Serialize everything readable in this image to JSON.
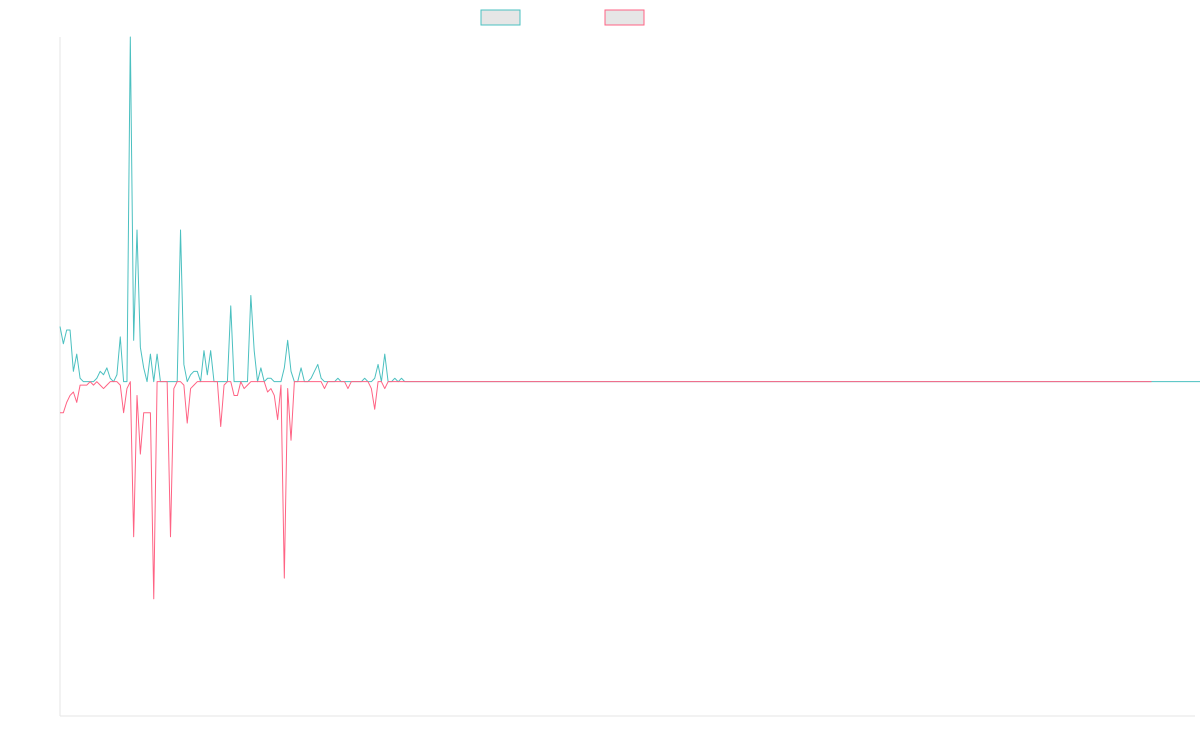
{
  "chart_data": {
    "type": "line",
    "title": "",
    "xlabel": "",
    "ylabel": "",
    "grid": false,
    "legend_position": "top",
    "x_count": 340,
    "ylim": [
      -0.97,
      1.0
    ],
    "series": [
      {
        "key": "positive",
        "color": "#4bc0c0",
        "fill": "#e6e6e6",
        "values": [
          0.16,
          0.11,
          0.15,
          0.15,
          0.03,
          0.08,
          0.01,
          0.0,
          0.0,
          0.0,
          0.0,
          0.01,
          0.03,
          0.02,
          0.04,
          0.01,
          0.0,
          0.02,
          0.13,
          0.0,
          0.0,
          1.0,
          0.12,
          0.44,
          0.1,
          0.04,
          0.0,
          0.08,
          0.0,
          0.08,
          0.0,
          0.0,
          0.0,
          0.0,
          0.0,
          0.0,
          0.44,
          0.05,
          0.0,
          0.02,
          0.03,
          0.03,
          0.0,
          0.09,
          0.02,
          0.09,
          0.0,
          0.0,
          0.0,
          0.0,
          0.0,
          0.22,
          0.0,
          0.0,
          0.0,
          0.0,
          0.0,
          0.25,
          0.09,
          0.0,
          0.04,
          0.0,
          0.01,
          0.01,
          0.0,
          0.0,
          0.0,
          0.04,
          0.12,
          0.03,
          0.0,
          0.0,
          0.04,
          0.0,
          0.0,
          0.01,
          0.03,
          0.05,
          0.01,
          0.0,
          0.0,
          0.0,
          0.0,
          0.01,
          0.0,
          0.0,
          0.0,
          0.0,
          0.0,
          0.0,
          0.0,
          0.01,
          0.0,
          0.0,
          0.01,
          0.05,
          0.0,
          0.08,
          0.0,
          0.0,
          0.01,
          0.0,
          0.01,
          0.0,
          0.0,
          0.0,
          0.0,
          0.0,
          0.0,
          0.0,
          0.0,
          0.0,
          0.0,
          0.0,
          0.0,
          0.0,
          0.0,
          0.0,
          0.0,
          0.0,
          0.0,
          0.0,
          0.0,
          0.0,
          0.0,
          0.0,
          0.0,
          0.0,
          0.0,
          0.0,
          0.0,
          0.0,
          0.0,
          0.0,
          0.0,
          0.0,
          0.0,
          0.0,
          0.0,
          0.0,
          0.0,
          0.0,
          0.0,
          0.0,
          0.0,
          0.0,
          0.0,
          0.0,
          0.0,
          0.0,
          0.0,
          0.0,
          0.0,
          0.0,
          0.0,
          0.0,
          0.0,
          0.0,
          0.0,
          0.0,
          0.0,
          0.0,
          0.0,
          0.0,
          0.0,
          0.0,
          0.0,
          0.0,
          0.0,
          0.0,
          0.0,
          0.0,
          0.0,
          0.0,
          0.0,
          0.0,
          0.0,
          0.0,
          0.0,
          0.0,
          0.0,
          0.0,
          0.0,
          0.0,
          0.0,
          0.0,
          0.0,
          0.0,
          0.0,
          0.0,
          0.0,
          0.0,
          0.0,
          0.0,
          0.0,
          0.0,
          0.0,
          0.0,
          0.0,
          0.0,
          0.0,
          0.0,
          0.0,
          0.0,
          0.0,
          0.0,
          0.0,
          0.0,
          0.0,
          0.0,
          0.0,
          0.0,
          0.0,
          0.0,
          0.0,
          0.0,
          0.0,
          0.0,
          0.0,
          0.0,
          0.0,
          0.0,
          0.0,
          0.0,
          0.0,
          0.0,
          0.0,
          0.0,
          0.0,
          0.0,
          0.0,
          0.0,
          0.0,
          0.0,
          0.0,
          0.0,
          0.0,
          0.0,
          0.0,
          0.0,
          0.0,
          0.0,
          0.0,
          0.0,
          0.0,
          0.0,
          0.0,
          0.0,
          0.0,
          0.0,
          0.0,
          0.0,
          0.0,
          0.0,
          0.0,
          0.0,
          0.0,
          0.0,
          0.0,
          0.0,
          0.0,
          0.0,
          0.0,
          0.0,
          0.0,
          0.0,
          0.0,
          0.0,
          0.0,
          0.0,
          0.0,
          0.0,
          0.0,
          0.0,
          0.0,
          0.0,
          0.0,
          0.0,
          0.0,
          0.0,
          0.0,
          0.0,
          0.0,
          0.0,
          0.0,
          0.0,
          0.0,
          0.0,
          0.0,
          0.0,
          0.0,
          0.0,
          0.0,
          0.0,
          0.0,
          0.0,
          0.0,
          0.0,
          0.0,
          0.0,
          0.0,
          0.0,
          0.0,
          0.0,
          0.0,
          0.0,
          0.0,
          0.0,
          0.0,
          0.0,
          0.0,
          0.0,
          0.0,
          0.0,
          0.0,
          0.0,
          0.0,
          0.0,
          0.0,
          0.0,
          0.0,
          0.0,
          0.0,
          0.0,
          0.0,
          0.0,
          0.0,
          0.0,
          0.0,
          0.0,
          0.0,
          0.0,
          0.0,
          0.0,
          0.0,
          0.0,
          0.0,
          0.0,
          0.0,
          0.0,
          0.0,
          0.0,
          0.0,
          0.0,
          0.0,
          0.0,
          0.0,
          0.0,
          0.0,
          0.0,
          0.0,
          0.0
        ]
      },
      {
        "key": "negative",
        "color": "#ff6384",
        "fill": "#e6e6e6",
        "values": [
          -0.09,
          -0.09,
          -0.06,
          -0.04,
          -0.03,
          -0.06,
          -0.01,
          -0.01,
          -0.01,
          -0.0,
          -0.01,
          -0.0,
          -0.01,
          -0.02,
          -0.01,
          -0.0,
          -0.0,
          -0.0,
          -0.01,
          -0.09,
          -0.02,
          -0.0,
          -0.45,
          -0.04,
          -0.21,
          -0.09,
          -0.09,
          -0.09,
          -0.63,
          -0.0,
          -0.0,
          -0.0,
          -0.0,
          -0.45,
          -0.02,
          -0.0,
          -0.0,
          -0.01,
          -0.12,
          -0.02,
          -0.01,
          -0.0,
          -0.0,
          -0.0,
          -0.0,
          -0.0,
          -0.0,
          -0.0,
          -0.13,
          -0.01,
          -0.0,
          -0.0,
          -0.04,
          -0.04,
          -0.0,
          -0.02,
          -0.01,
          -0.0,
          -0.0,
          -0.0,
          -0.0,
          -0.0,
          -0.03,
          -0.02,
          -0.04,
          -0.11,
          -0.01,
          -0.57,
          -0.02,
          -0.17,
          -0.0,
          -0.0,
          -0.0,
          -0.0,
          -0.0,
          -0.0,
          -0.0,
          -0.0,
          -0.0,
          -0.02,
          -0.0,
          -0.0,
          -0.0,
          -0.0,
          -0.0,
          -0.0,
          -0.02,
          -0.0,
          -0.0,
          -0.0,
          -0.0,
          -0.0,
          -0.0,
          -0.02,
          -0.08,
          -0.0,
          -0.0,
          -0.02,
          -0.0,
          -0.0,
          -0.0,
          -0.0,
          -0.0,
          -0.0,
          -0.0,
          -0.0,
          -0.0,
          -0.0,
          -0.0,
          -0.0,
          -0.0,
          -0.0,
          -0.0,
          -0.0,
          -0.0,
          -0.0,
          -0.0,
          -0.0,
          -0.0,
          -0.0,
          -0.0,
          -0.0,
          -0.0,
          -0.0,
          -0.0,
          -0.0,
          -0.0,
          -0.0,
          -0.0,
          -0.0,
          -0.0,
          -0.0,
          -0.0,
          -0.0,
          -0.0,
          -0.0,
          -0.0,
          -0.0,
          -0.0,
          -0.0,
          -0.0,
          -0.0,
          -0.0,
          -0.0,
          -0.0,
          -0.0,
          -0.0,
          -0.0,
          -0.0,
          -0.0,
          -0.0,
          -0.0,
          -0.0,
          -0.0,
          -0.0,
          -0.0,
          -0.0,
          -0.0,
          -0.0,
          -0.0,
          -0.0,
          -0.0,
          -0.0,
          -0.0,
          -0.0,
          -0.0,
          -0.0,
          -0.0,
          -0.0,
          -0.0,
          -0.0,
          -0.0,
          -0.0,
          -0.0,
          -0.0,
          -0.0,
          -0.0,
          -0.0,
          -0.0,
          -0.0,
          -0.0,
          -0.0,
          -0.0,
          -0.0,
          -0.0,
          -0.0,
          -0.0,
          -0.0,
          -0.0,
          -0.0,
          -0.0,
          -0.0,
          -0.0,
          -0.0,
          -0.0,
          -0.0,
          -0.0,
          -0.0,
          -0.0,
          -0.0,
          -0.0,
          -0.0,
          -0.0,
          -0.0,
          -0.0,
          -0.0,
          -0.0,
          -0.0,
          -0.0,
          -0.0,
          -0.0,
          -0.0,
          -0.0,
          -0.0,
          -0.0,
          -0.0,
          -0.0,
          -0.0,
          -0.0,
          -0.0,
          -0.0,
          -0.0,
          -0.0,
          -0.0,
          -0.0,
          -0.0,
          -0.0,
          -0.0,
          -0.0,
          -0.0,
          -0.0,
          -0.0,
          -0.0,
          -0.0,
          -0.0,
          -0.0,
          -0.0,
          -0.0,
          -0.0,
          -0.0,
          -0.0,
          -0.0,
          -0.0,
          -0.0,
          -0.0,
          -0.0,
          -0.0,
          -0.0,
          -0.0,
          -0.0,
          -0.0,
          -0.0,
          -0.0,
          -0.0,
          -0.0,
          -0.0,
          -0.0,
          -0.0,
          -0.0,
          -0.0,
          -0.0,
          -0.0,
          -0.0,
          -0.0,
          -0.0,
          -0.0,
          -0.0,
          -0.0,
          -0.0,
          -0.0,
          -0.0,
          -0.0,
          -0.0,
          -0.0,
          -0.0,
          -0.0,
          -0.0,
          -0.0,
          -0.0,
          -0.0,
          -0.0,
          -0.0,
          -0.0,
          -0.0,
          -0.0,
          -0.0,
          -0.0,
          -0.0,
          -0.0,
          -0.0,
          -0.0,
          -0.0,
          -0.0,
          -0.0,
          -0.0,
          -0.0,
          -0.0,
          -0.0,
          -0.0,
          -0.0,
          -0.0,
          -0.0,
          -0.0,
          -0.0,
          -0.0,
          -0.0,
          -0.0,
          -0.0,
          -0.0,
          -0.0,
          -0.0,
          -0.0,
          -0.0,
          -0.0,
          -0.0,
          -0.0,
          -0.0,
          -0.0,
          -0.0,
          -0.0,
          -0.0,
          -0.0,
          -0.0,
          -0.0,
          -0.0,
          -0.0,
          -0.0
        ]
      }
    ]
  }
}
